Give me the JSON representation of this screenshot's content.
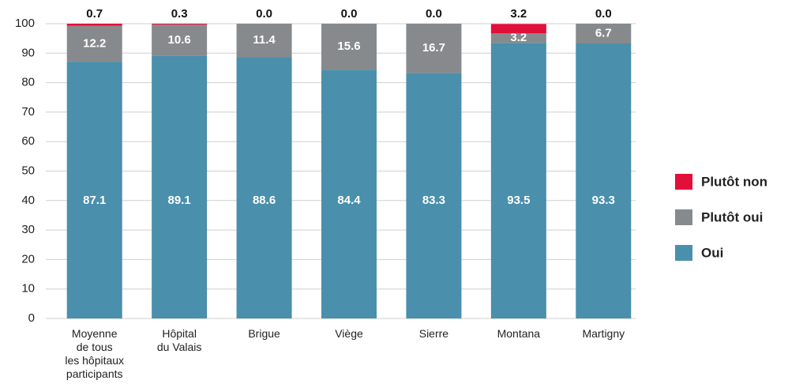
{
  "chart_data": {
    "type": "stacked_bar",
    "categories": [
      "Moyenne\nde tous\nles hôpitaux\nparticipants",
      "Hôpital\ndu Valais",
      "Brigue",
      "Viège",
      "Sierre",
      "Montana",
      "Martigny"
    ],
    "series": [
      {
        "name": "Oui",
        "color": "#4a8fab",
        "values": [
          87.1,
          89.1,
          88.6,
          84.4,
          83.3,
          93.5,
          93.3
        ],
        "value_labels": [
          "87.1",
          "89.1",
          "88.6",
          "84.4",
          "83.3",
          "93.5",
          "93.3"
        ]
      },
      {
        "name": "Plutôt oui",
        "color": "#878a8c",
        "values": [
          12.2,
          10.6,
          11.4,
          15.6,
          16.7,
          3.2,
          6.7
        ],
        "value_labels": [
          "12.2",
          "10.6",
          "11.4",
          "15.6",
          "16.7",
          "3.2",
          "6.7"
        ]
      },
      {
        "name": "Plutôt non",
        "color": "#e30f3b",
        "values": [
          0.7,
          0.3,
          0,
          0,
          0,
          3.2,
          0
        ],
        "value_labels": [
          "0.7",
          "0.3",
          "0.0",
          "0.0",
          "0.0",
          "3.2",
          "0.0"
        ]
      }
    ],
    "ylim": [
      0,
      100
    ],
    "yticks": [
      0,
      10,
      20,
      30,
      40,
      50,
      60,
      70,
      80,
      90,
      100
    ],
    "grid": true
  }
}
